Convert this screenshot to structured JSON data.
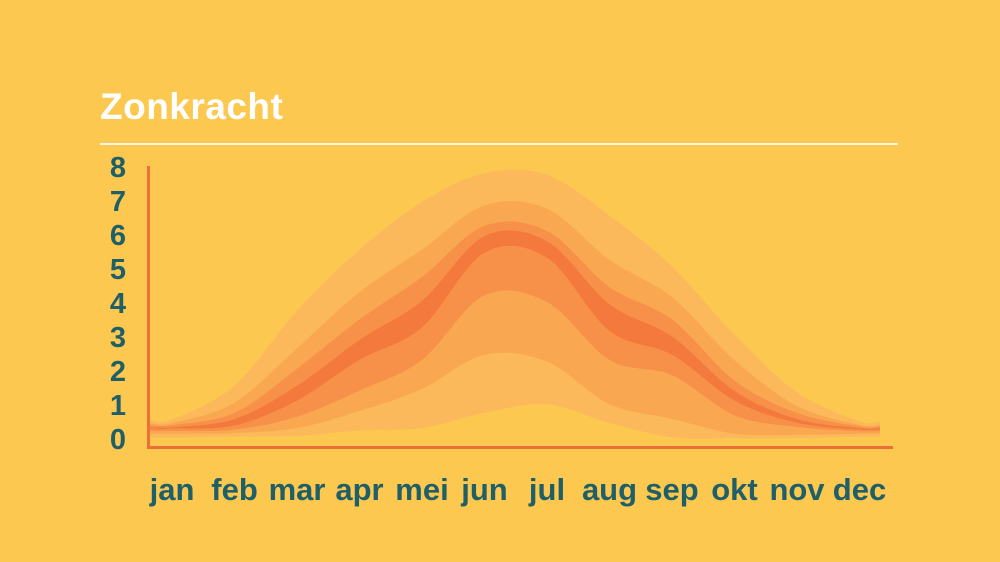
{
  "page": {
    "background_color": "#FCC84F"
  },
  "header": {
    "title": "Zonkracht",
    "title_color": "#FFFFFF",
    "rule_color": "#FFFFFF"
  },
  "chart_data": {
    "type": "area",
    "title": "Zonkracht",
    "xlabel": "",
    "ylabel": "",
    "categories": [
      "jan",
      "feb",
      "mar",
      "apr",
      "mei",
      "jun",
      "jul",
      "aug",
      "sep",
      "okt",
      "nov",
      "dec"
    ],
    "y_ticks": [
      "8",
      "7",
      "6",
      "5",
      "4",
      "3",
      "2",
      "1",
      "0"
    ],
    "ylim": [
      0,
      8
    ],
    "grid": false,
    "legend": false,
    "axis_color": "#EE7038",
    "tick_label_color": "#1F5F68",
    "boundaries": {
      "max": [
        0.6,
        1.6,
        3.8,
        5.6,
        7.0,
        7.85,
        7.8,
        6.6,
        5.1,
        3.1,
        1.4,
        0.55
      ],
      "p90": [
        0.5,
        1.1,
        2.7,
        4.35,
        5.6,
        6.9,
        6.8,
        5.3,
        4.2,
        2.35,
        1.0,
        0.45
      ],
      "p75": [
        0.44,
        0.8,
        2.1,
        3.55,
        4.8,
        6.3,
        6.15,
        4.5,
        3.55,
        1.75,
        0.8,
        0.4
      ],
      "p55": [
        0.38,
        0.62,
        1.6,
        2.95,
        4.1,
        6.0,
        5.85,
        4.0,
        3.05,
        1.45,
        0.62,
        0.35
      ],
      "p45": [
        0.33,
        0.42,
        1.15,
        2.35,
        3.3,
        5.5,
        5.35,
        3.2,
        2.5,
        1.15,
        0.5,
        0.3
      ],
      "p25": [
        0.26,
        0.3,
        0.68,
        1.45,
        2.35,
        4.25,
        4.05,
        2.35,
        1.9,
        0.72,
        0.38,
        0.25
      ],
      "p10": [
        0.18,
        0.2,
        0.35,
        0.85,
        1.5,
        2.5,
        2.3,
        1.05,
        0.62,
        0.18,
        0.15,
        0.18
      ],
      "min": [
        0.08,
        0.1,
        0.12,
        0.28,
        0.35,
        0.8,
        1.05,
        0.5,
        0.08,
        0.05,
        0.05,
        0.1
      ]
    },
    "bands": [
      {
        "upper": "max",
        "lower": "p90",
        "color": "#FBB95C"
      },
      {
        "upper": "p90",
        "lower": "p75",
        "color": "#F9A751"
      },
      {
        "upper": "p75",
        "lower": "p55",
        "color": "#F79149"
      },
      {
        "upper": "p55",
        "lower": "p45",
        "color": "#F4793C"
      },
      {
        "upper": "p45",
        "lower": "p25",
        "color": "#F79149"
      },
      {
        "upper": "p25",
        "lower": "p10",
        "color": "#F9A751"
      },
      {
        "upper": "p10",
        "lower": "min",
        "color": "#FBB95C"
      }
    ]
  }
}
